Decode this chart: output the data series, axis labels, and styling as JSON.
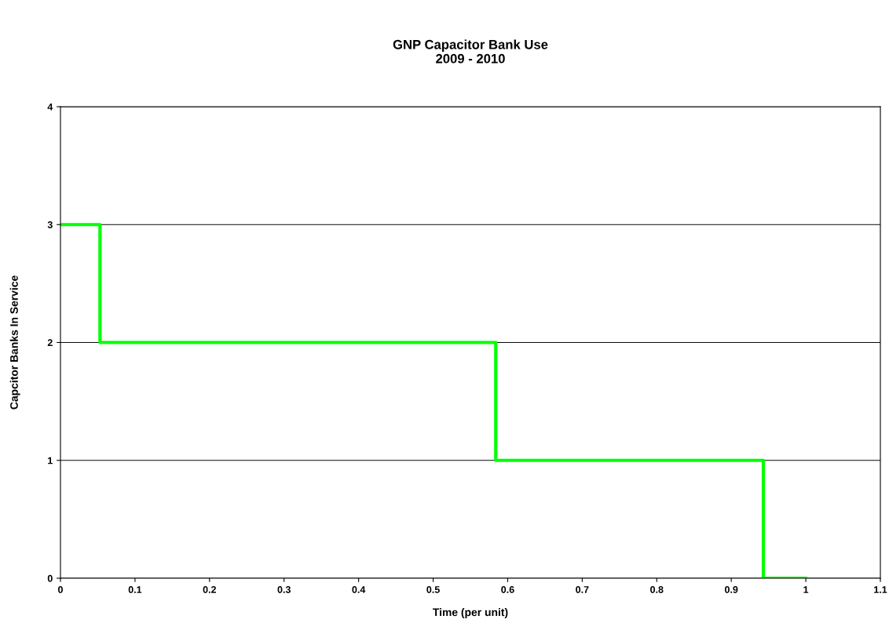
{
  "chart_data": {
    "type": "step",
    "title": "GNP Capacitor Bank Use\n2009 - 2010",
    "xlabel": "Time (per unit)",
    "ylabel": "Capcitor Banks In Service",
    "x": [
      0,
      0.053,
      0.584,
      0.943,
      1.0
    ],
    "series": [
      {
        "color": "#00ff00",
        "values": [
          3,
          2,
          1,
          0,
          0
        ]
      }
    ],
    "xlim": [
      0,
      1.1
    ],
    "xticks": [
      0,
      0.1,
      0.2,
      0.3,
      0.4,
      0.5,
      0.6,
      0.7,
      0.8,
      0.9,
      1,
      1.1
    ],
    "ylim": [
      0,
      4
    ],
    "yticks": [
      0,
      1,
      2,
      3,
      4
    ],
    "grid": "y",
    "line_style": "solid"
  }
}
